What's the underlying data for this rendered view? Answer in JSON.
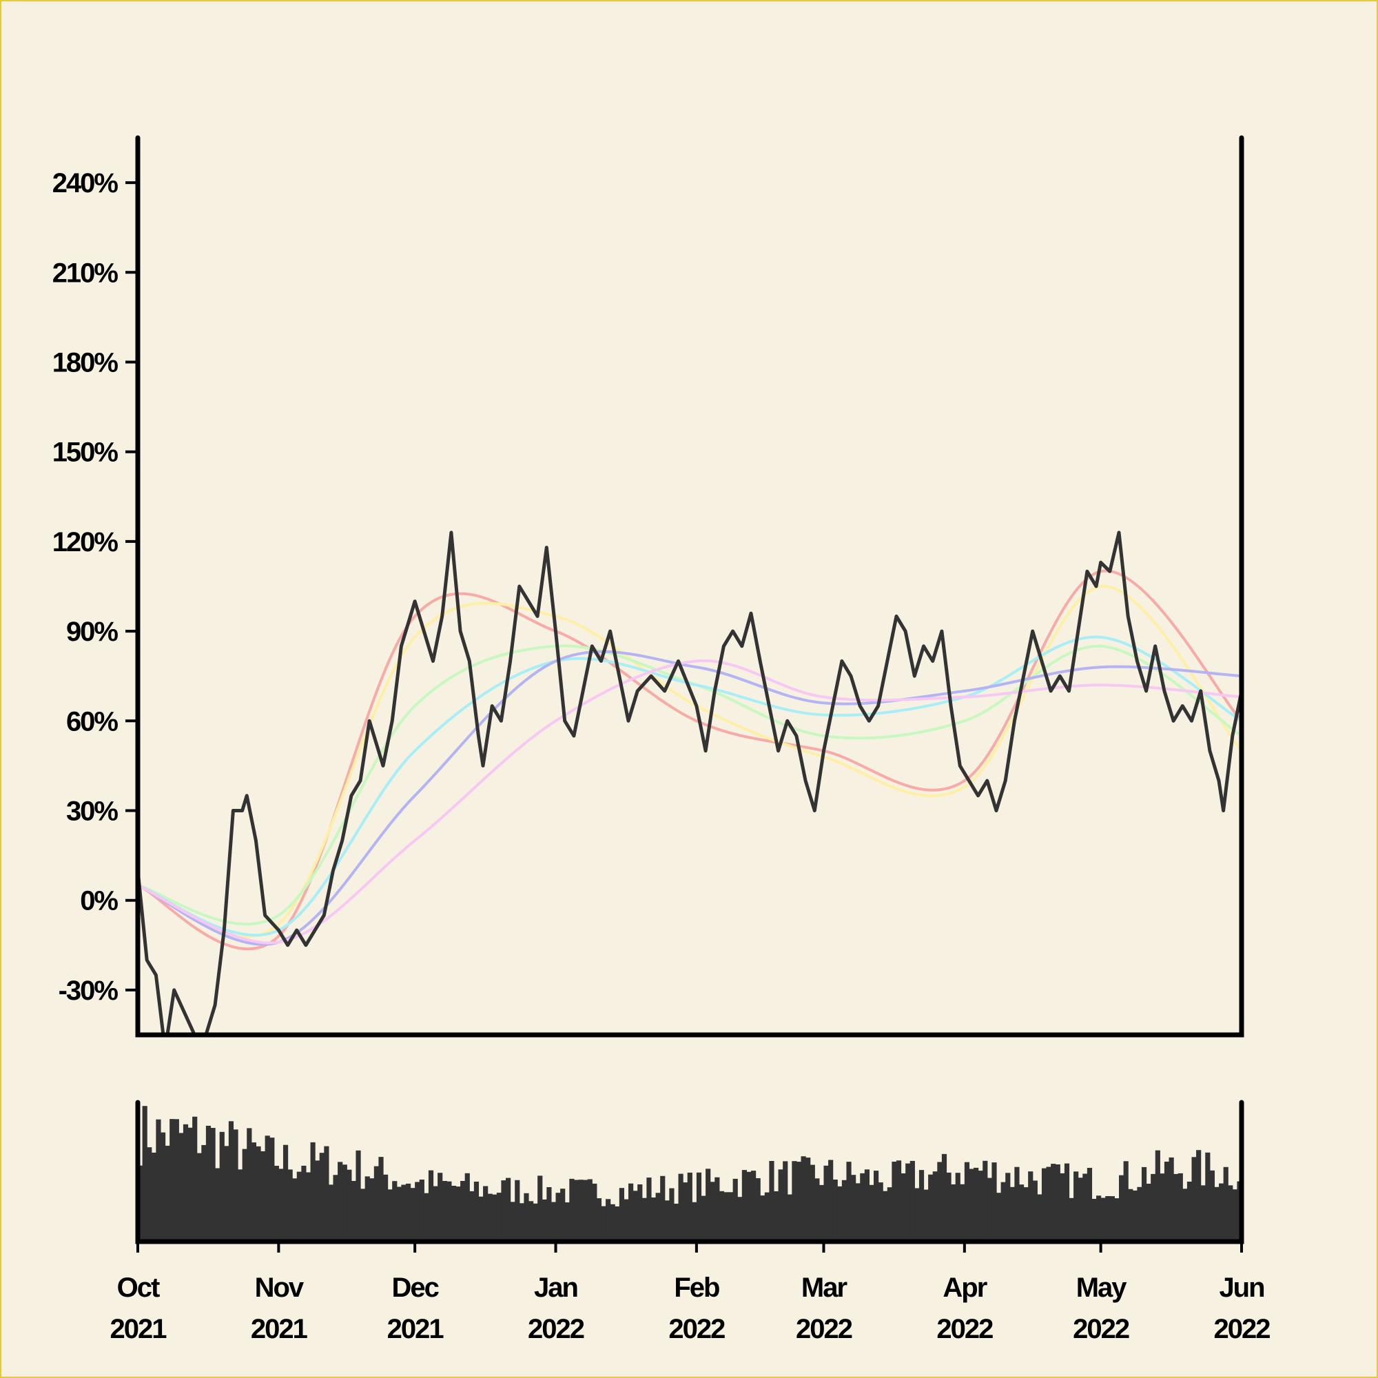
{
  "chart_data": {
    "type": "line",
    "title": "",
    "xlabel": "",
    "ylabel": "",
    "grid": false,
    "x_range": [
      "2021-10-01",
      "2022-06-01"
    ],
    "ylim": [
      -45,
      255
    ],
    "y_ticks": [
      {
        "value": -30,
        "label": "-30%"
      },
      {
        "value": 0,
        "label": "0%"
      },
      {
        "value": 30,
        "label": "30%"
      },
      {
        "value": 60,
        "label": "60%"
      },
      {
        "value": 90,
        "label": "90%"
      },
      {
        "value": 120,
        "label": "120%"
      },
      {
        "value": 150,
        "label": "150%"
      },
      {
        "value": 180,
        "label": "180%"
      },
      {
        "value": 210,
        "label": "210%"
      },
      {
        "value": 240,
        "label": "240%"
      }
    ],
    "x_ticks": [
      {
        "date": "2021-10-01",
        "month": "Oct",
        "year": "2021"
      },
      {
        "date": "2021-11-01",
        "month": "Nov",
        "year": "2021"
      },
      {
        "date": "2021-12-01",
        "month": "Dec",
        "year": "2021"
      },
      {
        "date": "2022-01-01",
        "month": "Jan",
        "year": "2022"
      },
      {
        "date": "2022-02-01",
        "month": "Feb",
        "year": "2022"
      },
      {
        "date": "2022-03-01",
        "month": "Mar",
        "year": "2022"
      },
      {
        "date": "2022-04-01",
        "month": "Apr",
        "year": "2022"
      },
      {
        "date": "2022-05-01",
        "month": "May",
        "year": "2022"
      },
      {
        "date": "2022-06-01",
        "month": "Jun",
        "year": "2022"
      }
    ],
    "price": {
      "color": "#333333",
      "points": [
        [
          "2021-10-01",
          10
        ],
        [
          "2021-10-03",
          -20
        ],
        [
          "2021-10-05",
          -25
        ],
        [
          "2021-10-07",
          -50
        ],
        [
          "2021-10-09",
          -30
        ],
        [
          "2021-10-12",
          -40
        ],
        [
          "2021-10-15",
          -50
        ],
        [
          "2021-10-18",
          -35
        ],
        [
          "2021-10-20",
          -10
        ],
        [
          "2021-10-22",
          30
        ],
        [
          "2021-10-24",
          30
        ],
        [
          "2021-10-25",
          35
        ],
        [
          "2021-10-27",
          20
        ],
        [
          "2021-10-29",
          -5
        ],
        [
          "2021-11-01",
          -10
        ],
        [
          "2021-11-03",
          -15
        ],
        [
          "2021-11-05",
          -10
        ],
        [
          "2021-11-07",
          -15
        ],
        [
          "2021-11-09",
          -10
        ],
        [
          "2021-11-11",
          -5
        ],
        [
          "2021-11-13",
          10
        ],
        [
          "2021-11-15",
          20
        ],
        [
          "2021-11-17",
          35
        ],
        [
          "2021-11-19",
          40
        ],
        [
          "2021-11-21",
          60
        ],
        [
          "2021-11-22",
          55
        ],
        [
          "2021-11-24",
          45
        ],
        [
          "2021-11-26",
          60
        ],
        [
          "2021-11-28",
          85
        ],
        [
          "2021-11-30",
          95
        ],
        [
          "2021-12-01",
          100
        ],
        [
          "2021-12-03",
          90
        ],
        [
          "2021-12-05",
          80
        ],
        [
          "2021-12-07",
          95
        ],
        [
          "2021-12-09",
          123
        ],
        [
          "2021-12-11",
          90
        ],
        [
          "2021-12-13",
          80
        ],
        [
          "2021-12-15",
          55
        ],
        [
          "2021-12-16",
          45
        ],
        [
          "2021-12-18",
          65
        ],
        [
          "2021-12-20",
          60
        ],
        [
          "2021-12-22",
          80
        ],
        [
          "2021-12-24",
          105
        ],
        [
          "2021-12-26",
          100
        ],
        [
          "2021-12-28",
          95
        ],
        [
          "2021-12-30",
          118
        ],
        [
          "2022-01-01",
          90
        ],
        [
          "2022-01-03",
          60
        ],
        [
          "2022-01-05",
          55
        ],
        [
          "2022-01-07",
          70
        ],
        [
          "2022-01-09",
          85
        ],
        [
          "2022-01-11",
          80
        ],
        [
          "2022-01-13",
          90
        ],
        [
          "2022-01-15",
          75
        ],
        [
          "2022-01-17",
          60
        ],
        [
          "2022-01-19",
          70
        ],
        [
          "2022-01-22",
          75
        ],
        [
          "2022-01-25",
          70
        ],
        [
          "2022-01-28",
          80
        ],
        [
          "2022-02-01",
          65
        ],
        [
          "2022-02-03",
          50
        ],
        [
          "2022-02-05",
          70
        ],
        [
          "2022-02-07",
          85
        ],
        [
          "2022-02-09",
          90
        ],
        [
          "2022-02-11",
          85
        ],
        [
          "2022-02-13",
          96
        ],
        [
          "2022-02-15",
          80
        ],
        [
          "2022-02-17",
          65
        ],
        [
          "2022-02-19",
          50
        ],
        [
          "2022-02-21",
          60
        ],
        [
          "2022-02-23",
          55
        ],
        [
          "2022-02-25",
          40
        ],
        [
          "2022-02-27",
          30
        ],
        [
          "2022-03-01",
          50
        ],
        [
          "2022-03-03",
          65
        ],
        [
          "2022-03-05",
          80
        ],
        [
          "2022-03-07",
          75
        ],
        [
          "2022-03-09",
          65
        ],
        [
          "2022-03-11",
          60
        ],
        [
          "2022-03-13",
          65
        ],
        [
          "2022-03-15",
          80
        ],
        [
          "2022-03-17",
          95
        ],
        [
          "2022-03-19",
          90
        ],
        [
          "2022-03-21",
          75
        ],
        [
          "2022-03-23",
          85
        ],
        [
          "2022-03-25",
          80
        ],
        [
          "2022-03-27",
          90
        ],
        [
          "2022-03-29",
          65
        ],
        [
          "2022-03-31",
          45
        ],
        [
          "2022-04-02",
          40
        ],
        [
          "2022-04-04",
          35
        ],
        [
          "2022-04-06",
          40
        ],
        [
          "2022-04-08",
          30
        ],
        [
          "2022-04-10",
          40
        ],
        [
          "2022-04-12",
          60
        ],
        [
          "2022-04-14",
          75
        ],
        [
          "2022-04-16",
          90
        ],
        [
          "2022-04-18",
          80
        ],
        [
          "2022-04-20",
          70
        ],
        [
          "2022-04-22",
          75
        ],
        [
          "2022-04-24",
          70
        ],
        [
          "2022-04-26",
          90
        ],
        [
          "2022-04-28",
          110
        ],
        [
          "2022-04-30",
          105
        ],
        [
          "2022-05-01",
          113
        ],
        [
          "2022-05-03",
          110
        ],
        [
          "2022-05-05",
          123
        ],
        [
          "2022-05-07",
          95
        ],
        [
          "2022-05-09",
          80
        ],
        [
          "2022-05-11",
          70
        ],
        [
          "2022-05-13",
          85
        ],
        [
          "2022-05-15",
          70
        ],
        [
          "2022-05-17",
          60
        ],
        [
          "2022-05-19",
          65
        ],
        [
          "2022-05-21",
          60
        ],
        [
          "2022-05-23",
          70
        ],
        [
          "2022-05-25",
          50
        ],
        [
          "2022-05-27",
          40
        ],
        [
          "2022-05-28",
          30
        ],
        [
          "2022-05-30",
          55
        ],
        [
          "2022-06-01",
          70
        ]
      ]
    },
    "moving_averages": [
      {
        "color": "#f7aaa6",
        "values_at_ticks": [
          5,
          -12,
          95,
          90,
          60,
          50,
          40,
          110,
          60
        ]
      },
      {
        "color": "#fdf0a6",
        "values_at_ticks": [
          5,
          -8,
          88,
          95,
          65,
          48,
          38,
          105,
          50
        ]
      },
      {
        "color": "#c8f8c0",
        "values_at_ticks": [
          5,
          -5,
          65,
          85,
          72,
          55,
          60,
          85,
          55
        ]
      },
      {
        "color": "#a8eef6",
        "values_at_ticks": [
          5,
          -10,
          50,
          80,
          72,
          62,
          68,
          88,
          60
        ]
      },
      {
        "color": "#b4b4f4",
        "values_at_ticks": [
          5,
          -14,
          35,
          80,
          78,
          66,
          70,
          78,
          75
        ]
      },
      {
        "color": "#f8c8f4",
        "values_at_ticks": [
          5,
          -14,
          20,
          60,
          80,
          68,
          68,
          72,
          68
        ]
      }
    ],
    "volume": {
      "color": "#333333",
      "y_range": [
        0,
        100
      ],
      "segments": [
        [
          "2021-10-01",
          78
        ],
        [
          "2021-10-15",
          75
        ],
        [
          "2021-11-01",
          58
        ],
        [
          "2021-11-15",
          55
        ],
        [
          "2021-12-01",
          42
        ],
        [
          "2021-12-15",
          38
        ],
        [
          "2022-01-01",
          36
        ],
        [
          "2022-01-15",
          36
        ],
        [
          "2022-02-01",
          40
        ],
        [
          "2022-02-15",
          46
        ],
        [
          "2022-03-01",
          48
        ],
        [
          "2022-03-15",
          44
        ],
        [
          "2022-04-01",
          52
        ],
        [
          "2022-04-15",
          46
        ],
        [
          "2022-05-01",
          42
        ],
        [
          "2022-05-15",
          52
        ],
        [
          "2022-06-01",
          50
        ]
      ]
    }
  }
}
